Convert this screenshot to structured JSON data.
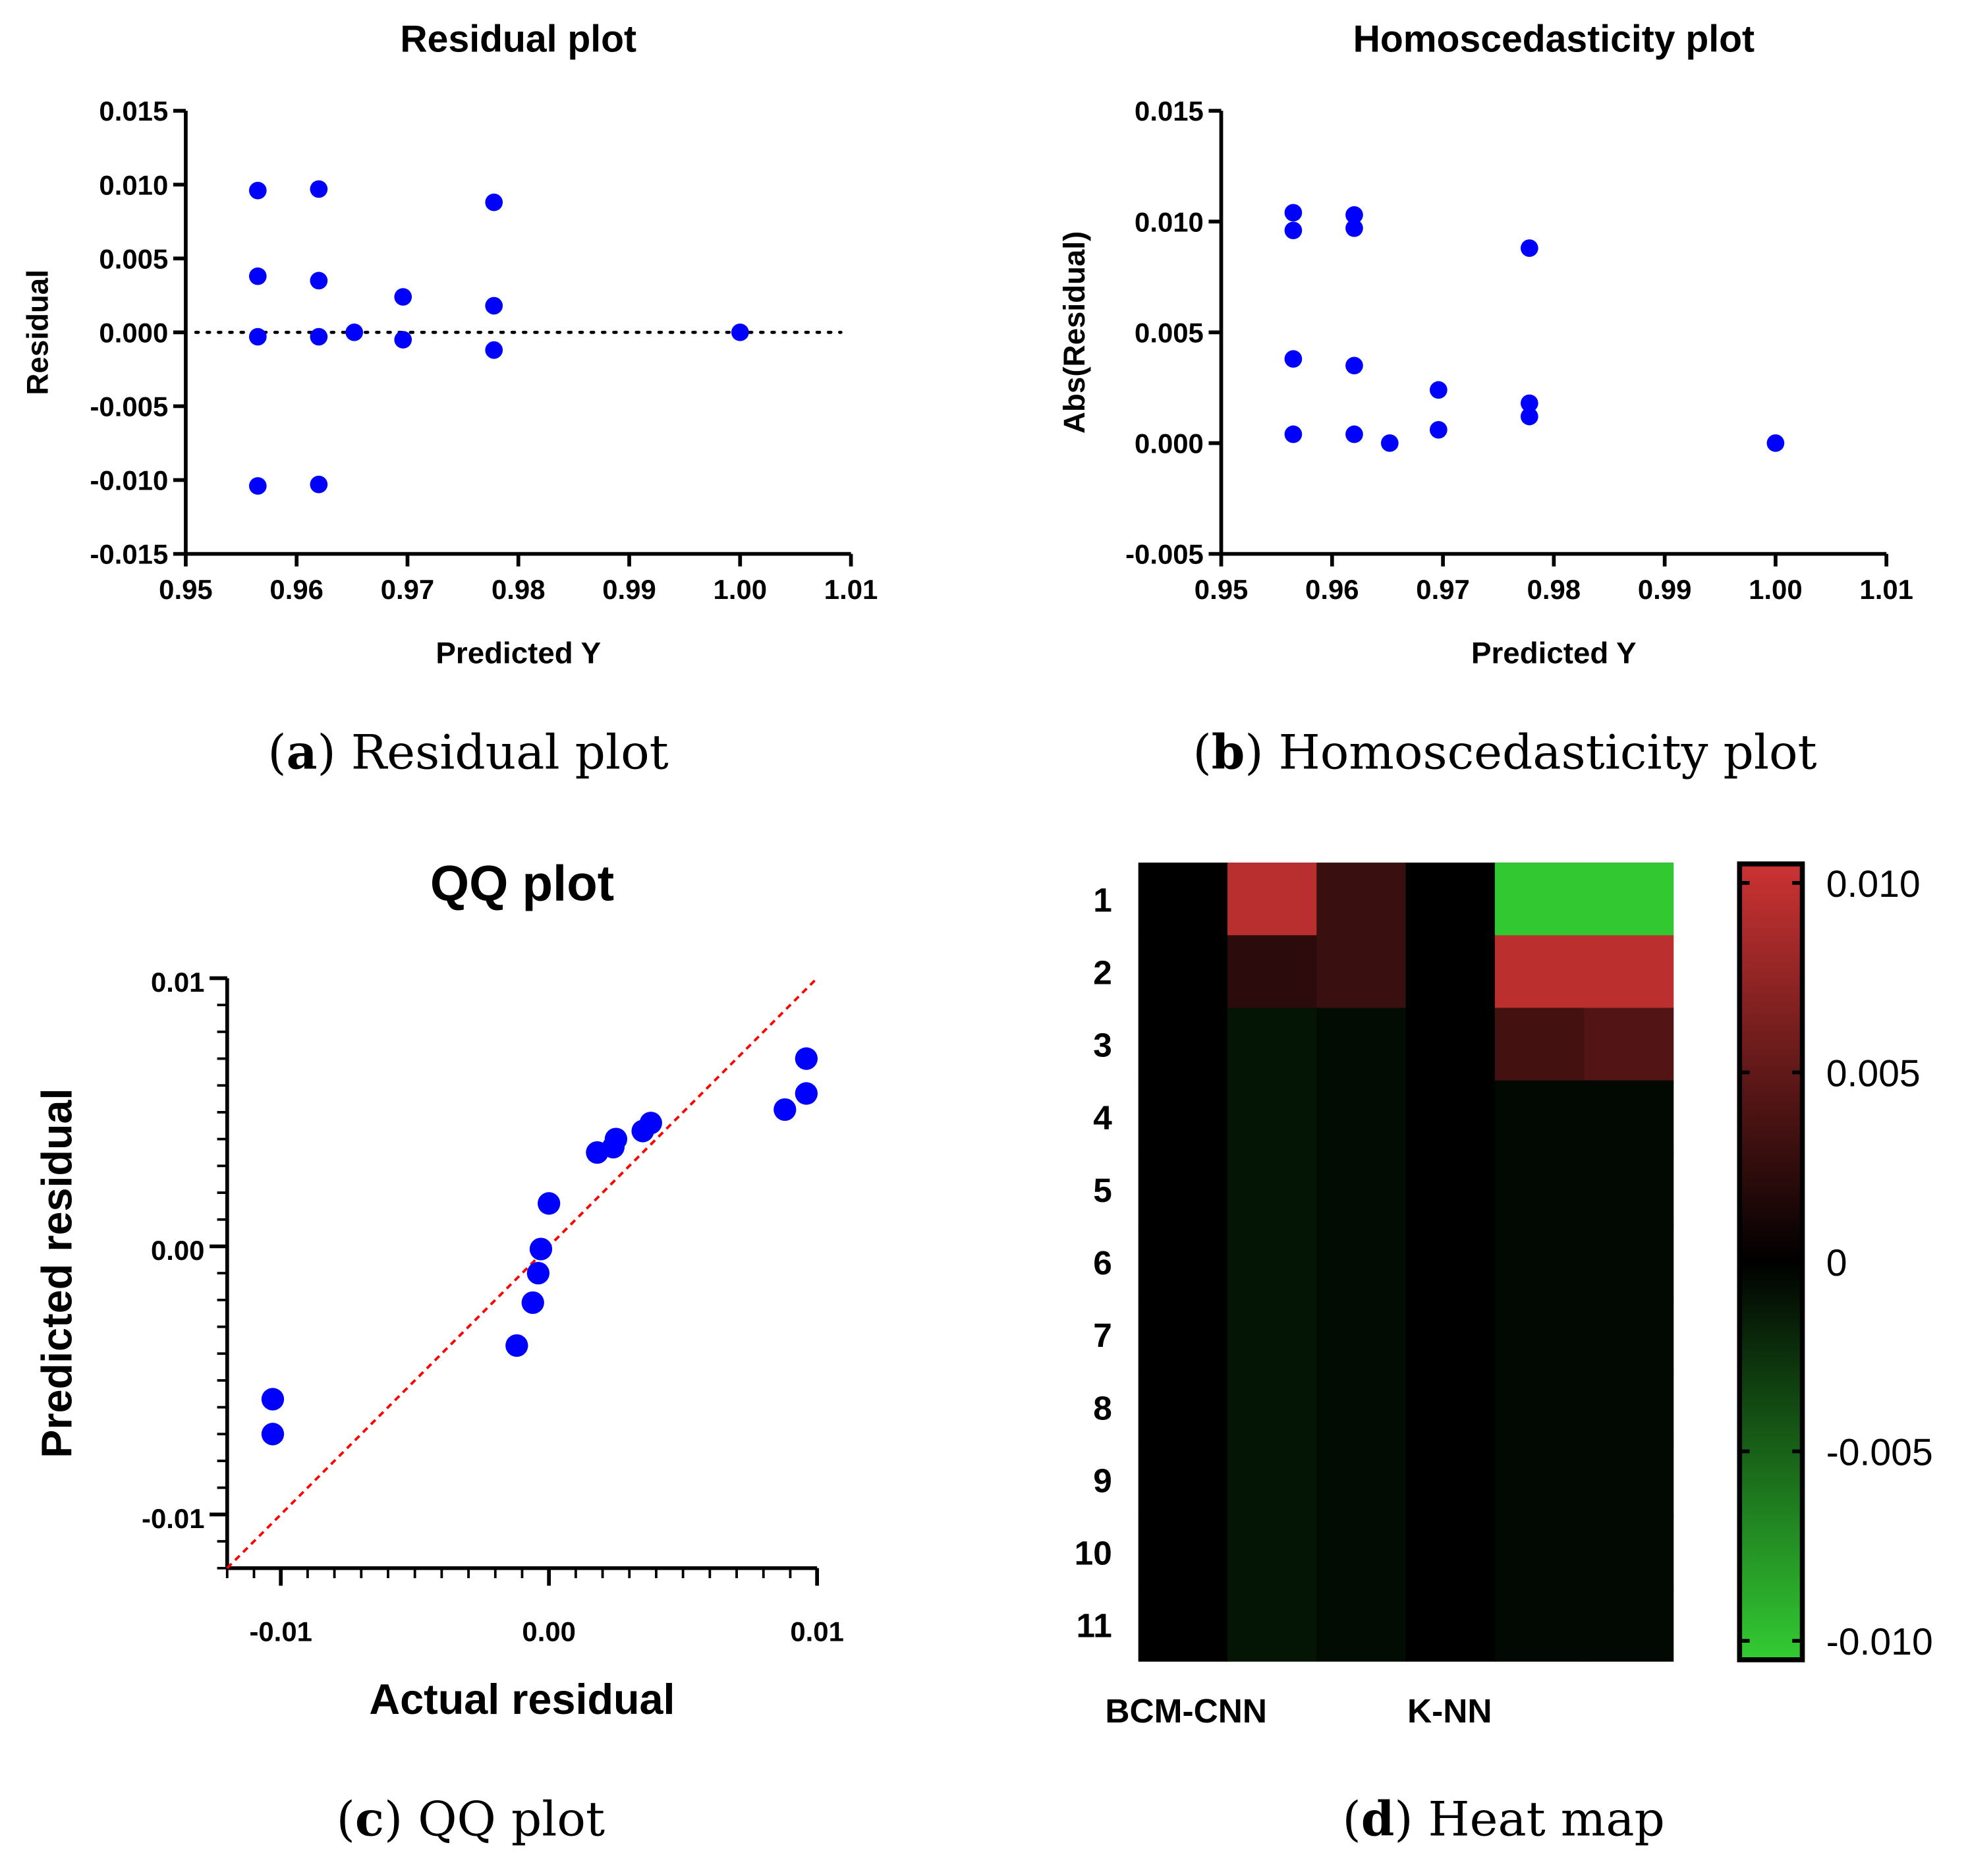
{
  "chart_data": [
    {
      "id": "a",
      "type": "scatter",
      "title": "Residual plot",
      "xlabel": "Predicted Y",
      "ylabel": "Residual",
      "caption": {
        "letter": "a",
        "text": "Residual plot"
      },
      "xlim": [
        0.95,
        1.01
      ],
      "ylim": [
        -0.015,
        0.015
      ],
      "xticks": [
        "0.95",
        "0.96",
        "0.97",
        "0.98",
        "0.99",
        "1.00",
        "1.01"
      ],
      "yticks": [
        "0.015",
        "0.010",
        "0.005",
        "0.000",
        "-0.005",
        "-0.010",
        "-0.015"
      ],
      "reference_line": {
        "y": 0,
        "style": "dotted"
      },
      "point_color": "#0000ff",
      "points": [
        [
          0.9565,
          0.0096
        ],
        [
          0.9565,
          0.0038
        ],
        [
          0.9565,
          -0.0003
        ],
        [
          0.9565,
          -0.0104
        ],
        [
          0.962,
          0.0097
        ],
        [
          0.962,
          0.0035
        ],
        [
          0.962,
          -0.0003
        ],
        [
          0.962,
          -0.0103
        ],
        [
          0.9652,
          0.0
        ],
        [
          0.9696,
          0.0024
        ],
        [
          0.9696,
          -0.0005
        ],
        [
          0.9778,
          0.0088
        ],
        [
          0.9778,
          0.0018
        ],
        [
          0.9778,
          -0.0012
        ],
        [
          1.0,
          0.0
        ]
      ]
    },
    {
      "id": "b",
      "type": "scatter",
      "title": "Homoscedasticity plot",
      "xlabel": "Predicted Y",
      "ylabel": "Abs(Residual)",
      "caption": {
        "letter": "b",
        "text": "Homoscedasticity plot"
      },
      "xlim": [
        0.95,
        1.01
      ],
      "ylim": [
        -0.005,
        0.015
      ],
      "xticks": [
        "0.95",
        "0.96",
        "0.97",
        "0.98",
        "0.99",
        "1.00",
        "1.01"
      ],
      "yticks": [
        "0.015",
        "0.010",
        "0.005",
        "0.000",
        "-0.005"
      ],
      "point_color": "#0000ff",
      "points": [
        [
          0.9565,
          0.0104
        ],
        [
          0.9565,
          0.0096
        ],
        [
          0.9565,
          0.0038
        ],
        [
          0.9565,
          0.0004
        ],
        [
          0.962,
          0.0103
        ],
        [
          0.962,
          0.0097
        ],
        [
          0.962,
          0.0035
        ],
        [
          0.962,
          0.0004
        ],
        [
          0.9652,
          0.0
        ],
        [
          0.9696,
          0.0024
        ],
        [
          0.9696,
          0.0006
        ],
        [
          0.9778,
          0.0088
        ],
        [
          0.9778,
          0.0018
        ],
        [
          0.9778,
          0.0012
        ],
        [
          1.0,
          0.0
        ]
      ]
    },
    {
      "id": "c",
      "type": "scatter",
      "title": "QQ plot",
      "xlabel": "Actual residual",
      "ylabel": "Predicted residual",
      "caption": {
        "letter": "c",
        "text": "QQ plot"
      },
      "xlim": [
        -0.012,
        0.01
      ],
      "ylim": [
        -0.012,
        0.01
      ],
      "xticks": [
        "-0.01",
        "0.00",
        "0.01"
      ],
      "yticks": [
        "0.01",
        "0.00",
        "-0.01"
      ],
      "reference_line": {
        "type": "y=x",
        "style": "dashed",
        "color": "#ff0000"
      },
      "point_color": "#0000ff",
      "points": [
        [
          -0.0103,
          -0.0057
        ],
        [
          -0.0103,
          -0.007
        ],
        [
          -0.0012,
          -0.0037
        ],
        [
          -0.0006,
          -0.0021
        ],
        [
          -0.0004,
          -0.001
        ],
        [
          -0.0003,
          -0.0001
        ],
        [
          0.0,
          0.0016
        ],
        [
          0.0018,
          0.0035
        ],
        [
          0.0024,
          0.0037
        ],
        [
          0.0025,
          0.004
        ],
        [
          0.0035,
          0.0043
        ],
        [
          0.0038,
          0.0046
        ],
        [
          0.0088,
          0.0051
        ],
        [
          0.0096,
          0.0057
        ],
        [
          0.0096,
          0.007
        ]
      ]
    },
    {
      "id": "d",
      "type": "heatmap",
      "caption": {
        "letter": "d",
        "text": "Heat map"
      },
      "rows": [
        "1",
        "2",
        "3",
        "4",
        "5",
        "6",
        "7",
        "8",
        "9",
        "10",
        "11"
      ],
      "column_labels": [
        "BCM-CNN",
        "K-NN"
      ],
      "colorbar": {
        "range": [
          -0.0105,
          0.0105
        ],
        "ticks": [
          "0.010",
          "0.005",
          "0",
          "-0.005",
          "-0.010"
        ],
        "low_color": "#33cc33",
        "mid_color": "#000000",
        "high_color": "#cc3333"
      },
      "values": [
        [
          0,
          0.0095,
          0.003,
          0,
          -0.0103,
          -0.0103
        ],
        [
          0,
          0.0022,
          0.003,
          0,
          0.0097,
          0.0097
        ],
        [
          0,
          -0.0011,
          -0.0006,
          0,
          0.0035,
          0.0042
        ],
        [
          0,
          -0.0011,
          -0.0006,
          0,
          -0.0004,
          -0.0004
        ],
        [
          0,
          -0.0011,
          -0.0006,
          0,
          -0.0004,
          -0.0004
        ],
        [
          0,
          -0.0011,
          -0.0006,
          0,
          -0.0004,
          -0.0004
        ],
        [
          0,
          -0.0011,
          -0.0006,
          0,
          -0.0004,
          -0.0004
        ],
        [
          0,
          -0.0011,
          -0.0006,
          0,
          -0.0004,
          -0.0004
        ],
        [
          0,
          -0.0011,
          -0.0006,
          0,
          -0.0004,
          -0.0004
        ],
        [
          0,
          -0.0011,
          -0.0006,
          0,
          -0.0004,
          -0.0004
        ],
        [
          0,
          -0.0011,
          -0.0006,
          0,
          -0.0004,
          -0.0004
        ]
      ]
    }
  ]
}
